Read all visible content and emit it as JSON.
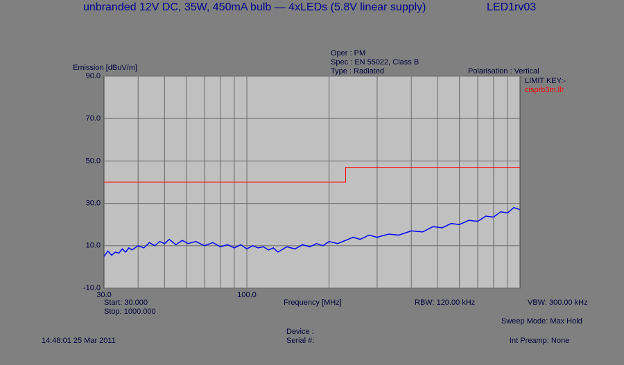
{
  "chart_data": {
    "type": "line",
    "title": "unbranded 12V DC, 35W, 450mA bulb — 4xLEDs (5.8V linear supply)",
    "run_id": "LED1rv03",
    "oper": "Oper : PM",
    "spec": "Spec : EN 55022, Class B",
    "test_type": "Type : Radiated",
    "polarisation": "Polarisation : Vertical",
    "y_label": "Emission [dBuV/m]",
    "x_label": "Frequency [MHz]",
    "limit_key": "LIMIT KEY:-",
    "start": "Start: 30.000",
    "stop": "Stop: 1000.000",
    "rbw": "RBW: 120.00 kHz",
    "vbw": "VBW: 300.00 kHz",
    "sweep_mode": "Sweep Mode: Max Hold",
    "timestamp": "14:48:01 25 Mar 2011",
    "device": "Device :",
    "serial": "Serial #:",
    "preamp": "Int Preamp: None",
    "xlog": true,
    "xlim": [
      30,
      1000
    ],
    "ylim": [
      -10,
      90
    ],
    "yticks": [
      {
        "value": -10,
        "label": "-10.0"
      },
      {
        "value": 10,
        "label": "10.0"
      },
      {
        "value": 30,
        "label": "30.0"
      },
      {
        "value": 50,
        "label": "50.0"
      },
      {
        "value": 70,
        "label": "70.0"
      },
      {
        "value": 90,
        "label": "90.0"
      }
    ],
    "xticks": [
      {
        "value": 30,
        "label": "30.0"
      },
      {
        "value": 100,
        "label": "100.0"
      }
    ],
    "xgrid": [
      40,
      50,
      60,
      70,
      80,
      90,
      100,
      200,
      300,
      400,
      500,
      600,
      700,
      800,
      900
    ],
    "limit": {
      "name": "cisprb3m.llr",
      "color": "#ff0000",
      "x": [
        30,
        230,
        230,
        1000
      ],
      "values": [
        40,
        40,
        47,
        47
      ]
    },
    "emission": {
      "color": "#0000ff",
      "x": [
        30,
        31,
        32,
        33,
        34,
        35,
        36,
        37,
        38,
        40,
        42,
        44,
        46,
        48,
        50,
        52,
        55,
        58,
        61,
        65,
        70,
        75,
        80,
        85,
        90,
        95,
        100,
        105,
        110,
        115,
        120,
        125,
        130,
        140,
        150,
        160,
        170,
        180,
        190,
        200,
        215,
        230,
        245,
        260,
        280,
        300,
        330,
        360,
        400,
        440,
        480,
        520,
        560,
        600,
        650,
        700,
        750,
        800,
        850,
        900,
        950,
        1000
      ],
      "values": [
        5,
        7.5,
        5.5,
        7,
        6.5,
        8.5,
        7,
        9,
        8,
        10,
        9,
        11.5,
        10,
        12,
        11,
        13,
        10.5,
        12.5,
        11,
        12,
        10,
        11.5,
        9.5,
        10.5,
        9,
        10.5,
        8.5,
        10,
        9,
        9.5,
        8,
        9,
        7,
        9.5,
        8.5,
        10.5,
        9.5,
        11,
        10,
        12,
        11,
        12.5,
        14,
        13,
        15,
        14,
        15.5,
        15,
        17,
        16.5,
        19,
        18.5,
        20.5,
        20,
        22,
        21.5,
        24,
        23.5,
        26,
        25.5,
        28,
        27
      ]
    }
  }
}
